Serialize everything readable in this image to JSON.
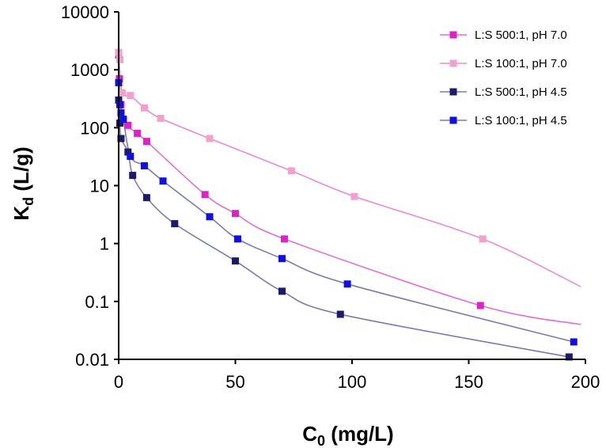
{
  "chart_data": {
    "type": "scatter",
    "title": "",
    "xlabel": {
      "main": "C",
      "sub": "0",
      "rest": " (mg/L)"
    },
    "ylabel": {
      "main": "K",
      "sub": "d",
      "rest": " (L/g)"
    },
    "xlim": [
      0,
      200
    ],
    "ylim": [
      0.01,
      10000
    ],
    "yscale": "log",
    "grid": false,
    "legend_position": "top-right",
    "x_ticks": [
      0,
      50,
      100,
      150,
      200
    ],
    "x_tick_labels": [
      "0",
      "50",
      "100",
      "150",
      "200"
    ],
    "y_ticks": [
      0.01,
      0.1,
      1,
      10,
      100,
      1000,
      10000
    ],
    "y_tick_labels": [
      "0.01",
      "0.1",
      "1",
      "10",
      "100",
      "1000",
      "10000"
    ],
    "series": [
      {
        "name": "L:S 500:1, pH 7.0",
        "marker_color": "#e020c8",
        "line_color": "#e070d8",
        "points": [
          [
            0,
            1800
          ],
          [
            0.3,
            700
          ],
          [
            1,
            250
          ],
          [
            4,
            110
          ],
          [
            8,
            80
          ],
          [
            12,
            58
          ],
          [
            37,
            7
          ],
          [
            50,
            3.3
          ],
          [
            71,
            1.2
          ],
          [
            155,
            0.085
          ]
        ],
        "curve": [
          [
            0,
            1800
          ],
          [
            1,
            250
          ],
          [
            4,
            110
          ],
          [
            12,
            58
          ],
          [
            37,
            7
          ],
          [
            50,
            3.3
          ],
          [
            71,
            1.2
          ],
          [
            155,
            0.085
          ],
          [
            198,
            0.04
          ]
        ]
      },
      {
        "name": "L:S 100:1, pH 7.0",
        "marker_color": "#f2a0cc",
        "line_color": "#e88ad8",
        "points": [
          [
            0,
            2000
          ],
          [
            0.5,
            1500
          ],
          [
            1.5,
            400
          ],
          [
            5,
            360
          ],
          [
            11,
            220
          ],
          [
            18,
            145
          ],
          [
            39,
            65
          ],
          [
            74,
            18
          ],
          [
            101,
            6.5
          ],
          [
            156,
            1.2
          ]
        ],
        "curve": [
          [
            0,
            2000
          ],
          [
            1.5,
            400
          ],
          [
            5,
            360
          ],
          [
            11,
            220
          ],
          [
            18,
            145
          ],
          [
            39,
            65
          ],
          [
            74,
            18
          ],
          [
            101,
            6.5
          ],
          [
            156,
            1.2
          ],
          [
            198,
            0.18
          ]
        ]
      },
      {
        "name": "L:S 500:1, pH 4.5",
        "marker_color": "#1a1a6e",
        "line_color": "#7a7ab0",
        "points": [
          [
            0,
            300
          ],
          [
            0.5,
            120
          ],
          [
            1,
            65
          ],
          [
            4,
            38
          ],
          [
            6,
            15
          ],
          [
            12,
            6.2
          ],
          [
            24,
            2.2
          ],
          [
            50,
            0.5
          ],
          [
            70,
            0.15
          ],
          [
            95,
            0.06
          ],
          [
            193,
            0.011
          ]
        ],
        "curve": [
          [
            0,
            300
          ],
          [
            0.5,
            120
          ],
          [
            1,
            65
          ],
          [
            4,
            38
          ],
          [
            6,
            15
          ],
          [
            12,
            6.2
          ],
          [
            24,
            2.2
          ],
          [
            50,
            0.5
          ],
          [
            70,
            0.15
          ],
          [
            95,
            0.06
          ],
          [
            193,
            0.011
          ]
        ]
      },
      {
        "name": "L:S 100:1, pH 4.5",
        "marker_color": "#1010e0",
        "line_color": "#7a7ab0",
        "points": [
          [
            0,
            600
          ],
          [
            0.5,
            250
          ],
          [
            1,
            180
          ],
          [
            2,
            140
          ],
          [
            5,
            32
          ],
          [
            11,
            22
          ],
          [
            19,
            12
          ],
          [
            39,
            2.9
          ],
          [
            51,
            1.2
          ],
          [
            70,
            0.55
          ],
          [
            98,
            0.2
          ],
          [
            195,
            0.02
          ]
        ],
        "curve": [
          [
            0,
            600
          ],
          [
            1,
            180
          ],
          [
            2,
            140
          ],
          [
            5,
            32
          ],
          [
            11,
            22
          ],
          [
            19,
            12
          ],
          [
            39,
            2.9
          ],
          [
            51,
            1.2
          ],
          [
            70,
            0.55
          ],
          [
            98,
            0.2
          ],
          [
            195,
            0.02
          ]
        ]
      }
    ]
  }
}
